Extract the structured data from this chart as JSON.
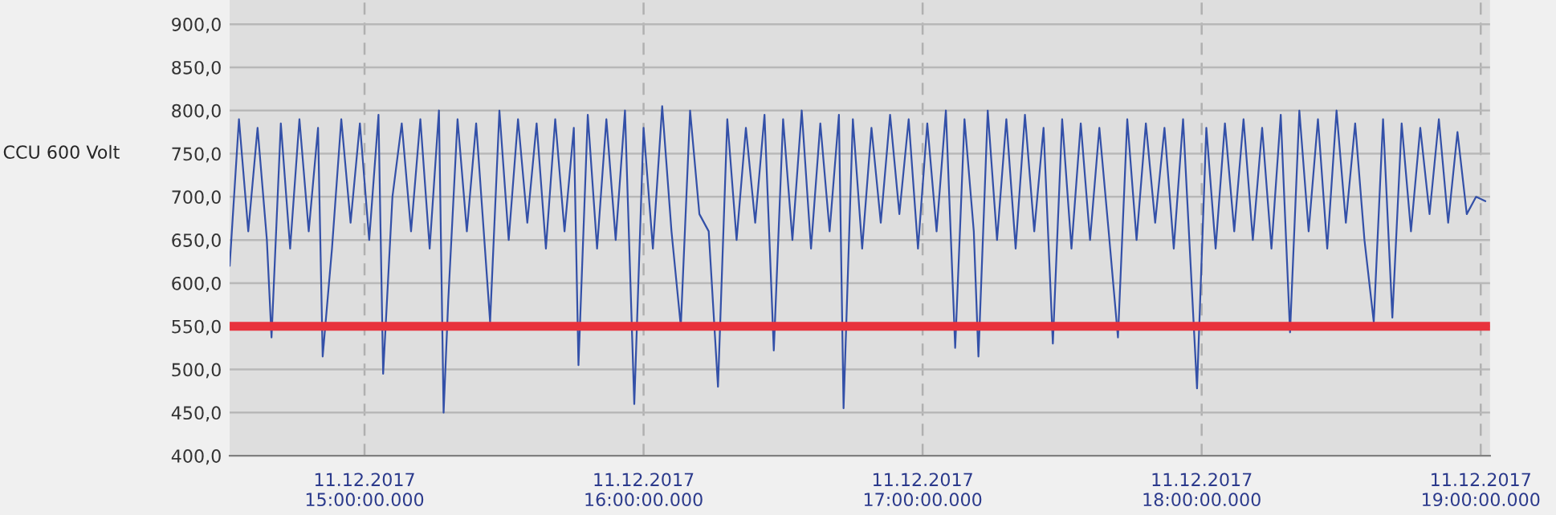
{
  "chart_data": {
    "type": "line",
    "ylabel": "CCU 600 Volt",
    "x": [
      "2017-12-11T14:31",
      "2017-12-11T14:33",
      "2017-12-11T14:35",
      "2017-12-11T14:37",
      "2017-12-11T14:39",
      "2017-12-11T14:40",
      "2017-12-11T14:42",
      "2017-12-11T14:44",
      "2017-12-11T14:46",
      "2017-12-11T14:48",
      "2017-12-11T14:50",
      "2017-12-11T14:51",
      "2017-12-11T14:53",
      "2017-12-11T14:55",
      "2017-12-11T14:57",
      "2017-12-11T14:59",
      "2017-12-11T15:01",
      "2017-12-11T15:03",
      "2017-12-11T15:04",
      "2017-12-11T15:06",
      "2017-12-11T15:08",
      "2017-12-11T15:10",
      "2017-12-11T15:12",
      "2017-12-11T15:14",
      "2017-12-11T15:16",
      "2017-12-11T15:17",
      "2017-12-11T15:18",
      "2017-12-11T15:20",
      "2017-12-11T15:22",
      "2017-12-11T15:24",
      "2017-12-11T15:27",
      "2017-12-11T15:29",
      "2017-12-11T15:31",
      "2017-12-11T15:33",
      "2017-12-11T15:35",
      "2017-12-11T15:37",
      "2017-12-11T15:39",
      "2017-12-11T15:41",
      "2017-12-11T15:43",
      "2017-12-11T15:45",
      "2017-12-11T15:46",
      "2017-12-11T15:48",
      "2017-12-11T15:50",
      "2017-12-11T15:52",
      "2017-12-11T15:54",
      "2017-12-11T15:56",
      "2017-12-11T15:58",
      "2017-12-11T16:00",
      "2017-12-11T16:02",
      "2017-12-11T16:04",
      "2017-12-11T16:06",
      "2017-12-11T16:08",
      "2017-12-11T16:10",
      "2017-12-11T16:12",
      "2017-12-11T16:14",
      "2017-12-11T16:16",
      "2017-12-11T16:18",
      "2017-12-11T16:20",
      "2017-12-11T16:22",
      "2017-12-11T16:24",
      "2017-12-11T16:26",
      "2017-12-11T16:28",
      "2017-12-11T16:30",
      "2017-12-11T16:32",
      "2017-12-11T16:34",
      "2017-12-11T16:36",
      "2017-12-11T16:38",
      "2017-12-11T16:40",
      "2017-12-11T16:42",
      "2017-12-11T16:43",
      "2017-12-11T16:45",
      "2017-12-11T16:47",
      "2017-12-11T16:49",
      "2017-12-11T16:51",
      "2017-12-11T16:53",
      "2017-12-11T16:55",
      "2017-12-11T16:57",
      "2017-12-11T16:59",
      "2017-12-11T17:01",
      "2017-12-11T17:03",
      "2017-12-11T17:05",
      "2017-12-11T17:07",
      "2017-12-11T17:09",
      "2017-12-11T17:11",
      "2017-12-11T17:12",
      "2017-12-11T17:14",
      "2017-12-11T17:16",
      "2017-12-11T17:18",
      "2017-12-11T17:20",
      "2017-12-11T17:22",
      "2017-12-11T17:24",
      "2017-12-11T17:26",
      "2017-12-11T17:28",
      "2017-12-11T17:30",
      "2017-12-11T17:32",
      "2017-12-11T17:34",
      "2017-12-11T17:36",
      "2017-12-11T17:38",
      "2017-12-11T17:40",
      "2017-12-11T17:42",
      "2017-12-11T17:44",
      "2017-12-11T17:46",
      "2017-12-11T17:48",
      "2017-12-11T17:50",
      "2017-12-11T17:52",
      "2017-12-11T17:54",
      "2017-12-11T17:56",
      "2017-12-11T17:59",
      "2017-12-11T18:01",
      "2017-12-11T18:03",
      "2017-12-11T18:05",
      "2017-12-11T18:07",
      "2017-12-11T18:09",
      "2017-12-11T18:11",
      "2017-12-11T18:13",
      "2017-12-11T18:15",
      "2017-12-11T18:17",
      "2017-12-11T18:19",
      "2017-12-11T18:21",
      "2017-12-11T18:23",
      "2017-12-11T18:25",
      "2017-12-11T18:27",
      "2017-12-11T18:29",
      "2017-12-11T18:31",
      "2017-12-11T18:33",
      "2017-12-11T18:35",
      "2017-12-11T18:37",
      "2017-12-11T18:39",
      "2017-12-11T18:41",
      "2017-12-11T18:43",
      "2017-12-11T18:45",
      "2017-12-11T18:47",
      "2017-12-11T18:49",
      "2017-12-11T18:51",
      "2017-12-11T18:53",
      "2017-12-11T18:55",
      "2017-12-11T18:57",
      "2017-12-11T18:59",
      "2017-12-11T19:01"
    ],
    "series": [
      {
        "color": "#3350a8",
        "values": [
          620,
          790,
          660,
          780,
          650,
          537,
          785,
          640,
          790,
          660,
          780,
          515,
          640,
          790,
          670,
          785,
          650,
          795,
          495,
          700,
          785,
          660,
          790,
          640,
          800,
          450,
          580,
          790,
          660,
          785,
          555,
          800,
          650,
          790,
          670,
          785,
          640,
          790,
          660,
          780,
          505,
          795,
          640,
          790,
          650,
          800,
          460,
          780,
          640,
          805,
          660,
          550,
          800,
          680,
          660,
          480,
          790,
          650,
          780,
          670,
          795,
          522,
          790,
          650,
          800,
          640,
          785,
          660,
          795,
          455,
          790,
          640,
          780,
          670,
          795,
          680,
          790,
          640,
          785,
          660,
          800,
          525,
          790,
          660,
          515,
          800,
          650,
          790,
          640,
          795,
          660,
          780,
          530,
          790,
          640,
          785,
          650,
          780,
          660,
          537,
          790,
          650,
          785,
          670,
          780,
          640,
          790,
          478,
          780,
          640,
          785,
          660,
          790,
          650,
          780,
          640,
          795,
          543,
          800,
          660,
          790,
          640,
          800,
          670,
          785,
          650,
          555,
          790,
          560,
          785,
          660,
          780,
          680,
          790,
          670,
          775,
          680,
          700,
          695
        ]
      }
    ],
    "xlim": [
      "2017-12-11T14:31",
      "2017-12-11T19:02"
    ],
    "xticks": [
      {
        "value": "2017-12-11T15:00",
        "label": "11.12.2017\n15:00:00.000"
      },
      {
        "value": "2017-12-11T16:00",
        "label": "11.12.2017\n16:00:00.000"
      },
      {
        "value": "2017-12-11T17:00",
        "label": "11.12.2017\n17:00:00.000"
      },
      {
        "value": "2017-12-11T18:00",
        "label": "11.12.2017\n18:00:00.000"
      },
      {
        "value": "2017-12-11T19:00",
        "label": "11.12.2017\n19:00:00.000"
      }
    ],
    "ylim": [
      400,
      928
    ],
    "yticks": [
      {
        "value": 400,
        "label": "400,0"
      },
      {
        "value": 450,
        "label": "450,0"
      },
      {
        "value": 500,
        "label": "500,0"
      },
      {
        "value": 550,
        "label": "550,0"
      },
      {
        "value": 600,
        "label": "600,0"
      },
      {
        "value": 650,
        "label": "650,0"
      },
      {
        "value": 700,
        "label": "700,0"
      },
      {
        "value": 750,
        "label": "750,0"
      },
      {
        "value": 800,
        "label": "800,0"
      },
      {
        "value": 850,
        "label": "850,0"
      },
      {
        "value": 900,
        "label": "900,0"
      }
    ],
    "ref_lines": [
      {
        "axis": "y",
        "value": 550,
        "color": "#e8323c"
      }
    ],
    "grid": true,
    "legend": false
  }
}
